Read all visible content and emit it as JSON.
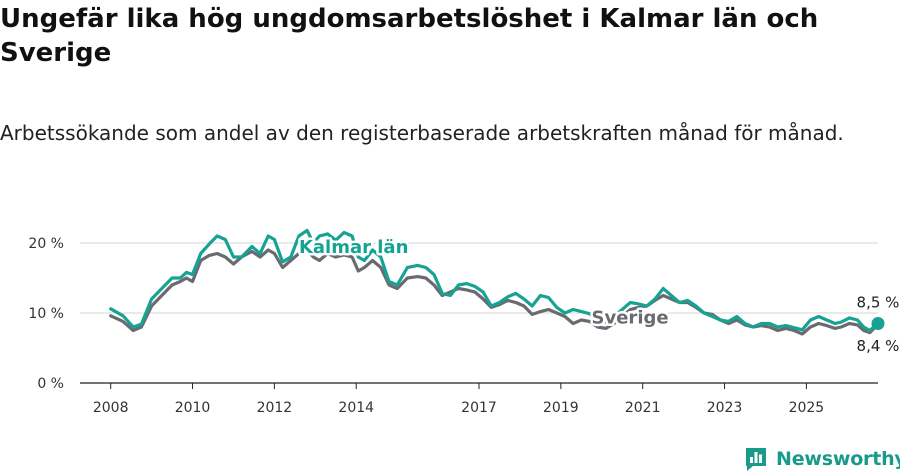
{
  "title": "Ungefär lika hög ungdomsarbetslöshet i Kalmar län och Sverige",
  "subtitle": "Arbetssökande som andel av den registerbaserade arbetskraften månad för månad.",
  "brand": {
    "name": "Newsworthy",
    "color": "#1a9a8a"
  },
  "chart_data": {
    "type": "line",
    "title": "Ungefär lika hög ungdomsarbetslöshet i Kalmar län och Sverige",
    "subtitle": "Arbetssökande som andel av den registerbaserade arbetskraften månad för månad.",
    "xlabel": "",
    "ylabel": "",
    "xlim": [
      2007.25,
      2026.75
    ],
    "ylim": [
      0,
      20
    ],
    "x_ticks": [
      2008,
      2010,
      2012,
      2014,
      2017,
      2019,
      2021,
      2023,
      2025
    ],
    "x_tick_labels": [
      "2008",
      "2010",
      "2012",
      "2014",
      "2017",
      "2019",
      "2021",
      "2023",
      "2025"
    ],
    "y_ticks": [
      0,
      10,
      20
    ],
    "y_tick_labels": [
      "0 %",
      "10 %",
      "20 %"
    ],
    "grid": true,
    "series": [
      {
        "name": "Kalmar län",
        "color": "#16a394",
        "label_at": [
          2012.6,
          18.6
        ],
        "end_label": "8,5 %",
        "points": [
          [
            2008.0,
            10.6
          ],
          [
            2008.3,
            9.6
          ],
          [
            2008.55,
            8.0
          ],
          [
            2008.75,
            8.4
          ],
          [
            2009.0,
            12.0
          ],
          [
            2009.25,
            13.5
          ],
          [
            2009.5,
            15.0
          ],
          [
            2009.7,
            15.0
          ],
          [
            2009.85,
            15.8
          ],
          [
            2010.0,
            15.5
          ],
          [
            2010.2,
            18.5
          ],
          [
            2010.4,
            19.8
          ],
          [
            2010.6,
            21.0
          ],
          [
            2010.8,
            20.5
          ],
          [
            2011.0,
            18.0
          ],
          [
            2011.2,
            18.0
          ],
          [
            2011.45,
            19.5
          ],
          [
            2011.65,
            18.5
          ],
          [
            2011.85,
            21.0
          ],
          [
            2012.0,
            20.5
          ],
          [
            2012.2,
            17.3
          ],
          [
            2012.4,
            18.0
          ],
          [
            2012.6,
            21.0
          ],
          [
            2012.8,
            21.8
          ],
          [
            2012.95,
            20.0
          ],
          [
            2013.1,
            21.0
          ],
          [
            2013.3,
            21.3
          ],
          [
            2013.5,
            20.4
          ],
          [
            2013.7,
            21.5
          ],
          [
            2013.9,
            21.0
          ],
          [
            2014.05,
            18.0
          ],
          [
            2014.2,
            17.5
          ],
          [
            2014.4,
            19.0
          ],
          [
            2014.6,
            18.0
          ],
          [
            2014.8,
            14.5
          ],
          [
            2015.0,
            14.0
          ],
          [
            2015.25,
            16.5
          ],
          [
            2015.5,
            16.8
          ],
          [
            2015.7,
            16.5
          ],
          [
            2015.9,
            15.5
          ],
          [
            2016.1,
            12.8
          ],
          [
            2016.3,
            12.5
          ],
          [
            2016.5,
            14.0
          ],
          [
            2016.7,
            14.2
          ],
          [
            2016.9,
            13.8
          ],
          [
            2017.1,
            13.0
          ],
          [
            2017.3,
            11.0
          ],
          [
            2017.5,
            11.5
          ],
          [
            2017.7,
            12.3
          ],
          [
            2017.9,
            12.8
          ],
          [
            2018.1,
            12.0
          ],
          [
            2018.3,
            11.0
          ],
          [
            2018.5,
            12.5
          ],
          [
            2018.7,
            12.2
          ],
          [
            2018.9,
            10.8
          ],
          [
            2019.1,
            10.0
          ],
          [
            2019.3,
            10.5
          ],
          [
            2019.5,
            10.2
          ],
          [
            2019.7,
            9.9
          ],
          [
            2019.9,
            9.0
          ],
          [
            2020.1,
            8.7
          ],
          [
            2020.3,
            9.5
          ],
          [
            2020.5,
            10.5
          ],
          [
            2020.7,
            11.5
          ],
          [
            2020.9,
            11.3
          ],
          [
            2021.1,
            11.0
          ],
          [
            2021.3,
            12.0
          ],
          [
            2021.5,
            13.5
          ],
          [
            2021.7,
            12.5
          ],
          [
            2021.9,
            11.5
          ],
          [
            2022.1,
            11.8
          ],
          [
            2022.3,
            11.0
          ],
          [
            2022.5,
            10.0
          ],
          [
            2022.7,
            9.5
          ],
          [
            2022.9,
            9.0
          ],
          [
            2023.1,
            8.8
          ],
          [
            2023.3,
            9.5
          ],
          [
            2023.5,
            8.5
          ],
          [
            2023.7,
            8.0
          ],
          [
            2023.9,
            8.5
          ],
          [
            2024.1,
            8.5
          ],
          [
            2024.3,
            8.0
          ],
          [
            2024.5,
            8.2
          ],
          [
            2024.7,
            7.9
          ],
          [
            2024.9,
            7.6
          ],
          [
            2025.1,
            9.0
          ],
          [
            2025.3,
            9.5
          ],
          [
            2025.5,
            9.0
          ],
          [
            2025.7,
            8.5
          ],
          [
            2025.85,
            8.7
          ],
          [
            2026.05,
            9.3
          ],
          [
            2026.25,
            9.0
          ],
          [
            2026.4,
            8.0
          ],
          [
            2026.55,
            7.5
          ],
          [
            2026.75,
            8.5
          ]
        ]
      },
      {
        "name": "Sverige",
        "color": "#696b70",
        "label_at": [
          2019.75,
          8.5
        ],
        "end_label": "8,4 %",
        "points": [
          [
            2008.0,
            9.6
          ],
          [
            2008.3,
            8.8
          ],
          [
            2008.55,
            7.5
          ],
          [
            2008.75,
            8.0
          ],
          [
            2009.0,
            11.0
          ],
          [
            2009.25,
            12.5
          ],
          [
            2009.5,
            14.0
          ],
          [
            2009.7,
            14.5
          ],
          [
            2009.85,
            15.0
          ],
          [
            2010.0,
            14.5
          ],
          [
            2010.2,
            17.5
          ],
          [
            2010.4,
            18.2
          ],
          [
            2010.6,
            18.5
          ],
          [
            2010.8,
            18.0
          ],
          [
            2011.0,
            17.0
          ],
          [
            2011.2,
            18.0
          ],
          [
            2011.45,
            18.8
          ],
          [
            2011.65,
            18.0
          ],
          [
            2011.85,
            19.0
          ],
          [
            2012.0,
            18.5
          ],
          [
            2012.2,
            16.5
          ],
          [
            2012.4,
            17.5
          ],
          [
            2012.6,
            18.5
          ],
          [
            2012.8,
            19.0
          ],
          [
            2012.95,
            18.0
          ],
          [
            2013.1,
            17.5
          ],
          [
            2013.3,
            18.5
          ],
          [
            2013.5,
            18.0
          ],
          [
            2013.7,
            18.3
          ],
          [
            2013.9,
            18.0
          ],
          [
            2014.05,
            16.0
          ],
          [
            2014.2,
            16.5
          ],
          [
            2014.4,
            17.5
          ],
          [
            2014.6,
            16.5
          ],
          [
            2014.8,
            14.0
          ],
          [
            2015.0,
            13.5
          ],
          [
            2015.25,
            15.0
          ],
          [
            2015.5,
            15.2
          ],
          [
            2015.7,
            15.0
          ],
          [
            2015.9,
            14.0
          ],
          [
            2016.1,
            12.5
          ],
          [
            2016.3,
            13.0
          ],
          [
            2016.5,
            13.5
          ],
          [
            2016.7,
            13.3
          ],
          [
            2016.9,
            13.0
          ],
          [
            2017.1,
            12.0
          ],
          [
            2017.3,
            10.8
          ],
          [
            2017.5,
            11.2
          ],
          [
            2017.7,
            11.8
          ],
          [
            2017.9,
            11.5
          ],
          [
            2018.1,
            11.0
          ],
          [
            2018.3,
            9.8
          ],
          [
            2018.5,
            10.2
          ],
          [
            2018.7,
            10.5
          ],
          [
            2018.9,
            10.0
          ],
          [
            2019.1,
            9.5
          ],
          [
            2019.3,
            8.5
          ],
          [
            2019.5,
            9.0
          ],
          [
            2019.7,
            8.8
          ],
          [
            2019.9,
            8.0
          ],
          [
            2020.1,
            7.8
          ],
          [
            2020.3,
            8.5
          ],
          [
            2020.5,
            9.5
          ],
          [
            2020.7,
            10.5
          ],
          [
            2020.9,
            10.8
          ],
          [
            2021.1,
            11.0
          ],
          [
            2021.3,
            11.8
          ],
          [
            2021.5,
            12.5
          ],
          [
            2021.7,
            12.0
          ],
          [
            2021.9,
            11.5
          ],
          [
            2022.1,
            11.5
          ],
          [
            2022.3,
            10.8
          ],
          [
            2022.5,
            10.0
          ],
          [
            2022.7,
            9.8
          ],
          [
            2022.9,
            9.0
          ],
          [
            2023.1,
            8.5
          ],
          [
            2023.3,
            9.0
          ],
          [
            2023.5,
            8.3
          ],
          [
            2023.7,
            8.0
          ],
          [
            2023.9,
            8.2
          ],
          [
            2024.1,
            8.0
          ],
          [
            2024.3,
            7.5
          ],
          [
            2024.5,
            7.8
          ],
          [
            2024.7,
            7.5
          ],
          [
            2024.9,
            7.0
          ],
          [
            2025.1,
            8.0
          ],
          [
            2025.3,
            8.5
          ],
          [
            2025.5,
            8.2
          ],
          [
            2025.7,
            7.8
          ],
          [
            2025.85,
            8.0
          ],
          [
            2026.05,
            8.5
          ],
          [
            2026.25,
            8.3
          ],
          [
            2026.4,
            7.5
          ],
          [
            2026.55,
            7.2
          ],
          [
            2026.75,
            8.4
          ]
        ]
      }
    ]
  }
}
